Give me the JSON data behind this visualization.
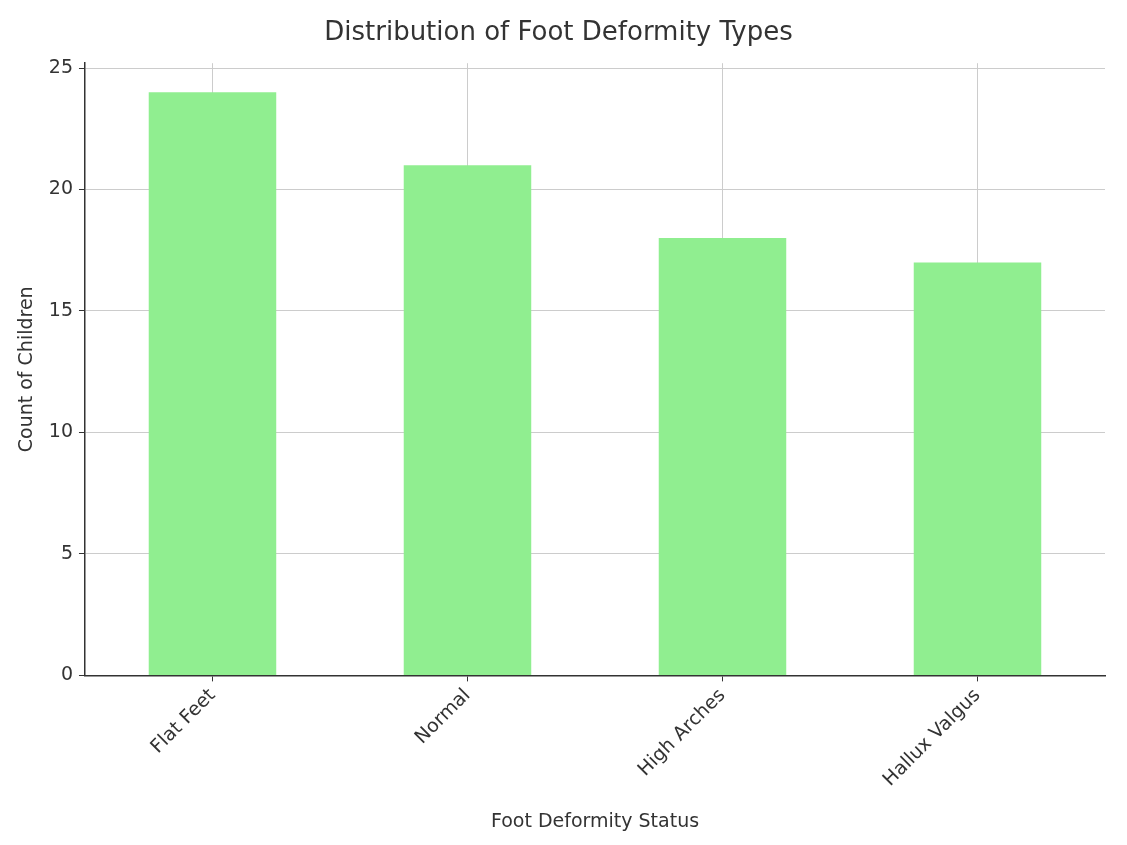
{
  "chart_data": {
    "type": "bar",
    "title": "Distribution of Foot Deformity Types",
    "xlabel": "Foot Deformity Status",
    "ylabel": "Count of Children",
    "categories": [
      "Flat Feet",
      "Normal",
      "High Arches",
      "Hallux Valgus"
    ],
    "values": [
      24,
      21,
      18,
      17
    ],
    "color": "#90ee90",
    "ylim": [
      0,
      25.2
    ],
    "yticks": [
      0,
      5,
      10,
      15,
      20,
      25
    ],
    "grid": true
  }
}
